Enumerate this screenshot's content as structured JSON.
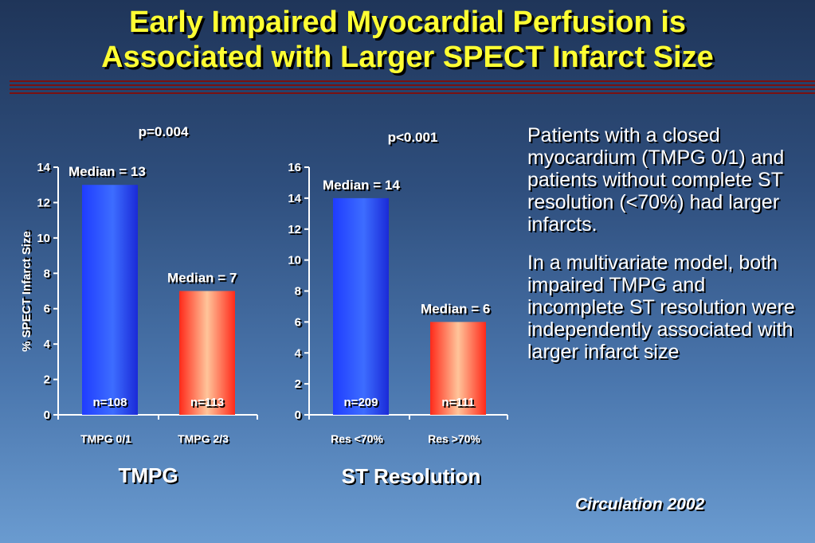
{
  "slide": {
    "title_line1": "Early Impaired Myocardial Perfusion is",
    "title_line2": "Associated with Larger SPECT Infarct Size",
    "bullets": [
      "Patients with a closed myocardium (TMPG 0/1) and patients without complete ST resolution (<70%) had larger infarcts.",
      "In a multivariate model, both impaired TMPG and incomplete ST resolution were independently associated with larger infarct size"
    ],
    "citation": "Circulation 2002",
    "colors": {
      "title": "#ffff33",
      "bar_blue": "#2f52ff",
      "bar_red": "#ff4a3a",
      "rule": "#7a1010"
    }
  },
  "chart_data": [
    {
      "type": "bar",
      "title": "TMPG",
      "p_value": "p=0.004",
      "ylabel": "% SPECT Infarct Size",
      "ylim": [
        0,
        14
      ],
      "yticks": [
        "0",
        "2",
        "4",
        "6",
        "8",
        "10",
        "12",
        "14"
      ],
      "categories": [
        "TMPG 0/1",
        "TMPG 2/3"
      ],
      "values": [
        13,
        7
      ],
      "bar_labels": [
        "Median = 13",
        "Median = 7"
      ],
      "n_labels": [
        "n=108",
        "n=113"
      ],
      "bar_colors": [
        "blue",
        "red"
      ]
    },
    {
      "type": "bar",
      "title": "ST Resolution",
      "p_value": "p<0.001",
      "ylim": [
        0,
        16
      ],
      "yticks": [
        "0",
        "2",
        "4",
        "6",
        "8",
        "10",
        "12",
        "14",
        "16"
      ],
      "categories": [
        "Res <70%",
        "Res >70%"
      ],
      "values": [
        14,
        6
      ],
      "bar_labels": [
        "Median = 14",
        "Median = 6"
      ],
      "n_labels": [
        "n=209",
        "n=111"
      ],
      "bar_colors": [
        "blue",
        "red"
      ]
    }
  ]
}
